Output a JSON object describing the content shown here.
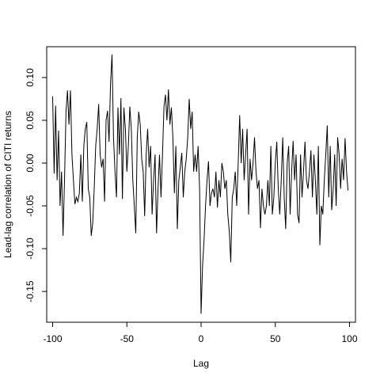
{
  "chart_data": {
    "type": "line",
    "title": "",
    "xlabel": "Lag",
    "ylabel": "Lead-lag correlation of CITI returns",
    "xlim": [
      -104,
      104
    ],
    "ylim": [
      -0.186,
      0.136
    ],
    "x_ticks": [
      -100,
      -50,
      0,
      50,
      100
    ],
    "x_tick_labels": [
      "-100",
      "-50",
      "0",
      "50",
      "100"
    ],
    "y_ticks": [
      -0.15,
      -0.1,
      -0.05,
      0.0,
      0.05,
      0.1
    ],
    "y_tick_labels": [
      "-0.15",
      "-0.10",
      "-0.05",
      "0.00",
      "0.05",
      "0.10"
    ],
    "grid": false,
    "legend": "none",
    "line_color": "#000000",
    "series": [
      {
        "x_start": -100,
        "x_step": 1,
        "values": [
          0.078,
          -0.012,
          0.067,
          -0.02,
          0.038,
          -0.05,
          -0.01,
          -0.085,
          -0.02,
          0.06,
          0.085,
          0.045,
          0.085,
          0.01,
          -0.02,
          -0.048,
          -0.04,
          -0.045,
          -0.035,
          0.01,
          -0.045,
          0.02,
          0.04,
          0.048,
          -0.03,
          -0.04,
          -0.085,
          -0.07,
          -0.03,
          0.02,
          0.04,
          0.069,
          0.01,
          -0.005,
          0.005,
          -0.045,
          0.05,
          0.061,
          0.025,
          0.093,
          0.127,
          0.03,
          -0.01,
          -0.04,
          0.065,
          0.01,
          0.076,
          -0.042,
          0.065,
          0.04,
          -0.01,
          0.02,
          0.066,
          0.04,
          -0.02,
          -0.05,
          -0.082,
          0.03,
          0.06,
          0.045,
          0.005,
          -0.01,
          -0.062,
          0.01,
          0.04,
          -0.005,
          0.02,
          -0.06,
          -0.02,
          0.01,
          -0.082,
          -0.03,
          0.01,
          -0.04,
          0.01,
          0.066,
          0.08,
          0.05,
          0.086,
          0.045,
          0.065,
          0.03,
          -0.035,
          0.02,
          -0.077,
          -0.02,
          -0.005,
          0.012,
          -0.04,
          -0.01,
          0.005,
          0.03,
          0.075,
          0.04,
          0.06,
          -0.01,
          0.01,
          -0.01,
          0.02,
          -0.03,
          -0.176,
          -0.12,
          -0.09,
          -0.05,
          -0.02,
          0.002,
          -0.05,
          -0.035,
          -0.03,
          -0.04,
          -0.01,
          -0.052,
          -0.02,
          -0.04,
          0.0,
          -0.01,
          -0.03,
          -0.02,
          -0.06,
          -0.08,
          -0.116,
          -0.04,
          -0.03,
          -0.01,
          -0.05,
          0.0,
          0.056,
          0.0,
          0.04,
          -0.02,
          0.01,
          0.04,
          -0.06,
          0.005,
          -0.02,
          0.0,
          0.03,
          -0.01,
          -0.03,
          -0.02,
          -0.076,
          -0.03,
          -0.05,
          -0.06,
          -0.05,
          -0.02,
          -0.05,
          0.02,
          -0.06,
          -0.04,
          0.0,
          0.025,
          -0.03,
          -0.06,
          -0.02,
          0.03,
          -0.04,
          -0.077,
          0.0,
          0.02,
          -0.06,
          -0.01,
          0.026,
          -0.02,
          0.01,
          -0.06,
          -0.07,
          0.01,
          -0.04,
          -0.01,
          0.025,
          -0.02,
          -0.03,
          -0.01,
          0.015,
          -0.04,
          0.01,
          -0.02,
          -0.06,
          0.02,
          -0.096,
          -0.05,
          -0.06,
          -0.02,
          0.01,
          0.044,
          -0.04,
          0.02,
          -0.055,
          -0.03,
          0.01,
          -0.05,
          0.03,
          0.01,
          -0.03,
          0.005,
          -0.02,
          0.029,
          -0.01,
          -0.032
        ]
      }
    ]
  }
}
